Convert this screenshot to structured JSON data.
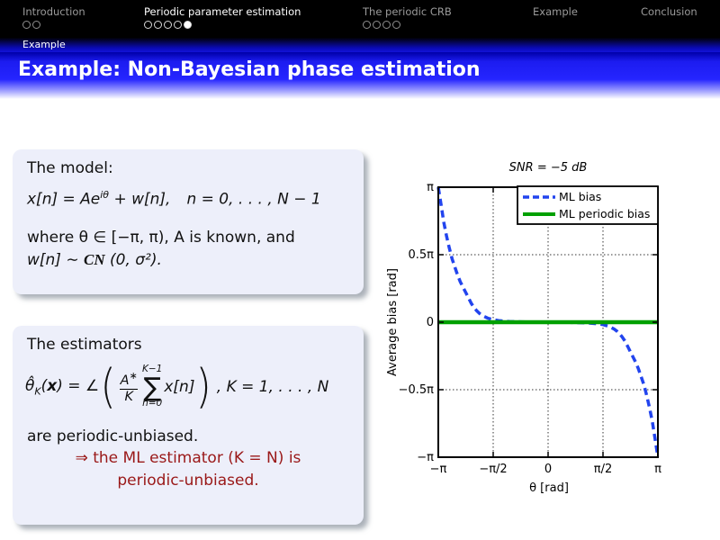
{
  "nav": {
    "sections": [
      {
        "label": "Introduction",
        "dots_total": 2,
        "current_dot": 0,
        "active": false
      },
      {
        "label": "Periodic parameter estimation",
        "dots_total": 5,
        "current_dot": 5,
        "active": true
      },
      {
        "label": "The periodic CRB",
        "dots_total": 4,
        "current_dot": 0,
        "active": false
      },
      {
        "label": "Example",
        "dots_total": 0,
        "current_dot": 0,
        "active": false
      },
      {
        "label": "Conclusion",
        "dots_total": 0,
        "current_dot": 0,
        "active": false
      }
    ],
    "breadcrumb": "Example"
  },
  "title": "Example: Non-Bayesian phase estimation",
  "model_box": {
    "heading": "The model:",
    "eq": {
      "pre": "x[n] = Ae",
      "sup": "iθ",
      "post": " + w[n],",
      "cond": "n = 0, . . . , N − 1"
    },
    "where_line": "where θ ∈ [−π, π), A is known, and",
    "noise": {
      "pre": "w[n] ∼ ",
      "cal": "CN",
      "post": " (0, σ²)."
    }
  },
  "estimator_box": {
    "heading": "The estimators",
    "f": {
      "lead_theta": "θ̂",
      "lead_sub": "K",
      "lead_open": "(",
      "lead_x": "x",
      "lead_close": ") = ∠",
      "paren_open": "(",
      "frac_num": "A",
      "frac_num_sup": "∗",
      "frac_den": "K",
      "sum_top": "K−1",
      "sum_sigma": "∑",
      "sum_bot": "n=0",
      "term": "x[n]",
      "paren_close": ")",
      "tail": ",  K = 1, . . . , N"
    },
    "after_line": "are periodic-unbiased.",
    "alert_line1": "⇒ the ML estimator (K = N) is",
    "alert_line2": "periodic-unbiased."
  },
  "chart_data": {
    "type": "line",
    "title": "SNR = −5 dB",
    "xlabel": "θ [rad]",
    "ylabel": "Average bias [rad]",
    "xlim_pi": [
      -1,
      1
    ],
    "ylim_pi": [
      -1,
      1
    ],
    "grid": true,
    "legend_position": "top-right",
    "xticks": [
      {
        "v": -1,
        "label": "−π"
      },
      {
        "v": -0.5,
        "label": "−π/2"
      },
      {
        "v": 0,
        "label": "0"
      },
      {
        "v": 0.5,
        "label": "π/2"
      },
      {
        "v": 1,
        "label": "π"
      }
    ],
    "yticks": [
      {
        "v": 1,
        "label": "π"
      },
      {
        "v": 0.5,
        "label": "0.5π"
      },
      {
        "v": 0,
        "label": "0"
      },
      {
        "v": -0.5,
        "label": "−0.5π"
      },
      {
        "v": -1,
        "label": "−π"
      }
    ],
    "series": [
      {
        "name": "ML bias",
        "color": "#2244ee",
        "style": "dashed",
        "x_pi": [
          -1.0,
          -0.975,
          -0.95,
          -0.925,
          -0.9,
          -0.875,
          -0.85,
          -0.825,
          -0.8,
          -0.775,
          -0.75,
          -0.725,
          -0.7,
          -0.675,
          -0.65,
          -0.625,
          -0.6,
          -0.55,
          -0.5,
          -0.45,
          -0.4,
          -0.35,
          -0.3,
          -0.25,
          -0.2,
          -0.15,
          -0.1,
          -0.05,
          0.0,
          0.05,
          0.1,
          0.15,
          0.2,
          0.25,
          0.3,
          0.35,
          0.4,
          0.45,
          0.5,
          0.55,
          0.6,
          0.625,
          0.65,
          0.675,
          0.7,
          0.725,
          0.75,
          0.775,
          0.8,
          0.825,
          0.85,
          0.875,
          0.9,
          0.925,
          0.95,
          0.975,
          1.0
        ],
        "y_pi": [
          1.0,
          0.87,
          0.74,
          0.64,
          0.55,
          0.47,
          0.41,
          0.35,
          0.3,
          0.26,
          0.22,
          0.18,
          0.14,
          0.11,
          0.085,
          0.065,
          0.05,
          0.03,
          0.018,
          0.012,
          0.008,
          0.005,
          0.004,
          0.003,
          0.002,
          0.002,
          0.001,
          0.001,
          0.0,
          -0.001,
          -0.001,
          -0.002,
          -0.002,
          -0.003,
          -0.004,
          -0.005,
          -0.008,
          -0.012,
          -0.018,
          -0.03,
          -0.05,
          -0.065,
          -0.085,
          -0.11,
          -0.14,
          -0.18,
          -0.22,
          -0.26,
          -0.3,
          -0.35,
          -0.41,
          -0.47,
          -0.55,
          -0.64,
          -0.74,
          -0.87,
          -1.0
        ]
      },
      {
        "name": "ML periodic bias",
        "color": "#00a000",
        "style": "solid",
        "x_pi": [
          -1,
          1
        ],
        "y_pi": [
          0,
          0
        ]
      }
    ]
  },
  "colors": {
    "title_bar_blue": "#2525ff",
    "alert_red": "#9a1818",
    "box_background": "#edeffa",
    "ml_bias_blue": "#2244ee",
    "ml_periodic_green": "#00a000"
  }
}
